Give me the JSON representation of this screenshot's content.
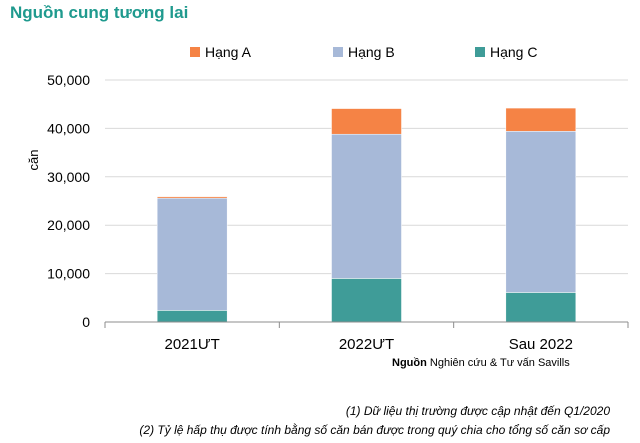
{
  "title": "Nguồn cung tương lai",
  "chart_data": {
    "type": "bar",
    "stacked": true,
    "categories": [
      "2021ƯT",
      "2022ƯT",
      "Sau 2022"
    ],
    "series": [
      {
        "name": "Hạng A",
        "color": "#f58345",
        "values": [
          300,
          5300,
          4800
        ]
      },
      {
        "name": "Hạng B",
        "color": "#a7b9d8",
        "values": [
          23200,
          29800,
          33300
        ]
      },
      {
        "name": "Hạng C",
        "color": "#3f9c98",
        "values": [
          2400,
          9000,
          6100
        ]
      }
    ],
    "stack_order_bottom_to_top": [
      "Hạng C",
      "Hạng B",
      "Hạng A"
    ],
    "ylabel": "căn",
    "xlabel": "",
    "ylim": [
      0,
      50000
    ],
    "yticks": [
      0,
      10000,
      20000,
      30000,
      40000,
      50000
    ],
    "ytick_labels": [
      "0",
      "10,000",
      "20,000",
      "30,000",
      "40,000",
      "50,000"
    ],
    "grid": true,
    "legend_position": "top"
  },
  "source": {
    "label": "Nguồn",
    "text": "Nghiên cứu & Tư vấn Savills"
  },
  "notes": [
    "(1) Dữ liệu thị trường được cập nhật đến Q1/2020",
    "(2) Tỷ lệ hấp thụ được tính bằng số căn bán được trong quý chia cho tổng số căn sơ cấp"
  ]
}
